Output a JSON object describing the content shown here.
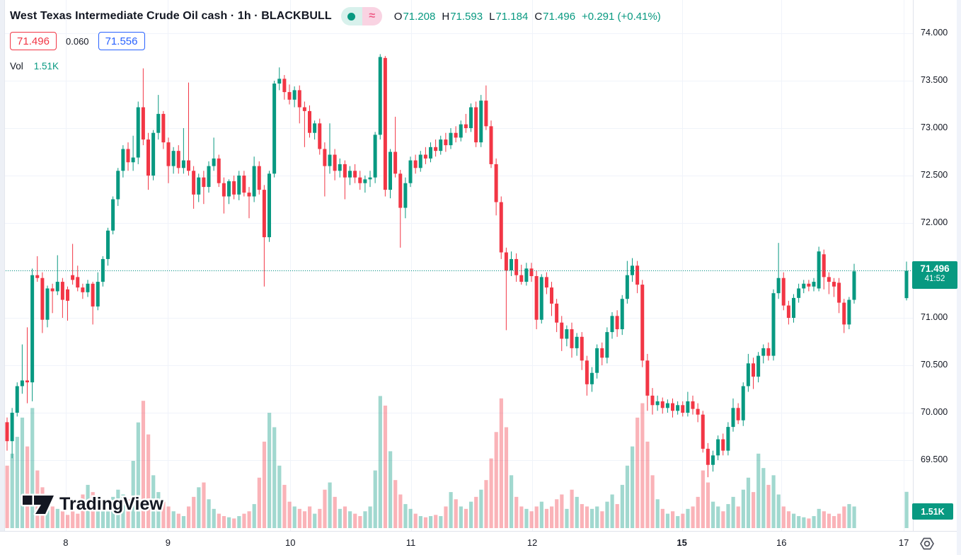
{
  "header": {
    "title": "West Texas Intermediate Crude Oil cash · 1h · BLACKBULL",
    "approx_glyph": "≈",
    "ohlc": {
      "o_label": "O",
      "o": "71.208",
      "h_label": "H",
      "h": "71.593",
      "l_label": "L",
      "l": "71.184",
      "c_label": "C",
      "c": "71.496",
      "change": "+0.291 (+0.41%)"
    },
    "bid": "71.496",
    "spread": "0.060",
    "ask": "71.556",
    "vol_label": "Vol",
    "vol_value": "1.51K"
  },
  "badges": {
    "price": "71.496",
    "countdown": "41:52",
    "volume": "1.51K"
  },
  "watermark": {
    "text": "TradingView"
  },
  "chart_data": {
    "type": "candlestick",
    "title": "West Texas Intermediate Crude Oil cash",
    "interval": "1h",
    "feed": "BLACKBULL",
    "legend": [
      "price OHLC candles",
      "volume bars"
    ],
    "grid": true,
    "ylim": [
      69.25,
      74.35
    ],
    "price_ticks": [
      {
        "label": "74.000",
        "price": 74.0
      },
      {
        "label": "73.500",
        "price": 73.5
      },
      {
        "label": "73.000",
        "price": 73.0
      },
      {
        "label": "72.500",
        "price": 72.5
      },
      {
        "label": "72.000",
        "price": 72.0
      },
      {
        "label": "71.000",
        "price": 71.0
      },
      {
        "label": "70.500",
        "price": 70.5
      },
      {
        "label": "70.000",
        "price": 70.0
      },
      {
        "label": "69.500",
        "price": 69.5
      }
    ],
    "grid_prices": [
      74.0,
      73.5,
      73.0,
      72.5,
      72.0,
      71.5,
      71.0,
      70.5,
      70.0,
      69.5
    ],
    "time_labels": [
      {
        "text": "8",
        "f": 0.072
      },
      {
        "text": "9",
        "f": 0.184
      },
      {
        "text": "10",
        "f": 0.318
      },
      {
        "text": "11",
        "f": 0.45
      },
      {
        "text": "12",
        "f": 0.583
      },
      {
        "text": "15",
        "f": 0.747,
        "bold": true
      },
      {
        "text": "16",
        "f": 0.856
      },
      {
        "text": "17",
        "f": 0.99
      }
    ],
    "last_price": 71.496,
    "countdown": "41:52",
    "volume_scale_max": 5.6,
    "current_candle": {
      "o": 71.208,
      "h": 71.593,
      "l": 71.184,
      "c": 71.496,
      "v": 1.51,
      "v_label": "1.51K"
    },
    "candles": [
      [
        69.9,
        69.95,
        69.6,
        69.7,
        2.6
      ],
      [
        69.7,
        70.05,
        69.52,
        70.0,
        3.1
      ],
      [
        70.0,
        70.32,
        69.96,
        70.28,
        3.8
      ],
      [
        70.28,
        70.72,
        70.2,
        70.34,
        4.6
      ],
      [
        70.34,
        70.9,
        70.1,
        70.32,
        3.4
      ],
      [
        70.32,
        71.52,
        70.12,
        71.45,
        5.0
      ],
      [
        71.45,
        71.65,
        71.38,
        71.42,
        2.4
      ],
      [
        71.42,
        71.48,
        70.84,
        70.98,
        1.7
      ],
      [
        70.98,
        71.34,
        70.9,
        71.31,
        1.2
      ],
      [
        71.31,
        71.36,
        71.05,
        71.28,
        0.9
      ],
      [
        71.28,
        71.66,
        71.24,
        71.38,
        0.8
      ],
      [
        71.38,
        71.42,
        71.0,
        71.19,
        0.7
      ],
      [
        71.3,
        71.33,
        70.97,
        71.18,
        0.55
      ],
      [
        71.45,
        71.78,
        71.35,
        71.4,
        0.8
      ],
      [
        71.43,
        71.55,
        71.28,
        71.32,
        0.6
      ],
      [
        71.32,
        71.36,
        71.2,
        71.27,
        1.4
      ],
      [
        71.27,
        71.4,
        71.22,
        71.36,
        1.8
      ],
      [
        71.36,
        71.38,
        70.93,
        71.12,
        1.5
      ],
      [
        71.12,
        71.48,
        71.08,
        71.38,
        1.1
      ],
      [
        71.38,
        71.65,
        71.33,
        71.62,
        0.9
      ],
      [
        71.62,
        71.95,
        71.55,
        71.92,
        1.0
      ],
      [
        71.92,
        72.28,
        71.88,
        72.25,
        1.3
      ],
      [
        72.25,
        72.58,
        72.18,
        72.55,
        1.6
      ],
      [
        72.55,
        72.82,
        72.48,
        72.78,
        1.4
      ],
      [
        72.78,
        72.85,
        72.55,
        72.64,
        1.2
      ],
      [
        72.64,
        72.92,
        72.55,
        72.69,
        2.8
      ],
      [
        72.69,
        73.28,
        72.62,
        73.22,
        4.4
      ],
      [
        73.22,
        73.63,
        72.82,
        72.88,
        5.3
      ],
      [
        72.88,
        72.95,
        72.35,
        72.5,
        3.9
      ],
      [
        72.5,
        72.98,
        72.45,
        72.95,
        2.2
      ],
      [
        72.95,
        73.35,
        72.88,
        73.15,
        1.5
      ],
      [
        73.15,
        73.18,
        72.78,
        72.85,
        1.1
      ],
      [
        72.85,
        72.9,
        72.42,
        72.6,
        0.9
      ],
      [
        72.6,
        72.8,
        72.52,
        72.76,
        0.7
      ],
      [
        72.76,
        72.82,
        72.52,
        72.58,
        0.6
      ],
      [
        72.58,
        73.0,
        72.52,
        72.66,
        0.5
      ],
      [
        72.66,
        73.48,
        72.5,
        72.55,
        0.9
      ],
      [
        72.55,
        72.6,
        72.15,
        72.3,
        1.3
      ],
      [
        72.3,
        72.52,
        72.22,
        72.48,
        1.7
      ],
      [
        72.48,
        72.55,
        72.2,
        72.38,
        1.9
      ],
      [
        72.38,
        72.65,
        72.32,
        72.6,
        1.2
      ],
      [
        72.6,
        72.9,
        72.55,
        72.68,
        0.8
      ],
      [
        72.68,
        72.72,
        72.38,
        72.42,
        0.6
      ],
      [
        72.42,
        72.48,
        72.1,
        72.28,
        0.5
      ],
      [
        72.28,
        72.46,
        72.2,
        72.44,
        0.45
      ],
      [
        72.44,
        72.5,
        72.25,
        72.3,
        0.4
      ],
      [
        72.3,
        72.55,
        72.24,
        72.5,
        0.5
      ],
      [
        72.5,
        72.55,
        72.28,
        72.32,
        0.6
      ],
      [
        72.32,
        72.38,
        72.05,
        72.28,
        0.7
      ],
      [
        72.28,
        72.7,
        72.22,
        72.6,
        1.0
      ],
      [
        72.6,
        72.65,
        72.3,
        72.35,
        2.1
      ],
      [
        72.35,
        72.4,
        71.33,
        71.85,
        3.6
      ],
      [
        71.85,
        72.55,
        71.8,
        72.52,
        4.8
      ],
      [
        72.52,
        73.5,
        72.48,
        73.47,
        4.2
      ],
      [
        73.47,
        73.64,
        73.4,
        73.52,
        2.6
      ],
      [
        73.52,
        73.56,
        73.3,
        73.38,
        1.8
      ],
      [
        73.38,
        73.46,
        73.25,
        73.3,
        1.1
      ],
      [
        73.3,
        73.44,
        73.22,
        73.4,
        0.9
      ],
      [
        73.4,
        73.45,
        73.05,
        73.22,
        0.8
      ],
      [
        73.22,
        73.28,
        72.8,
        73.18,
        0.7
      ],
      [
        73.18,
        73.24,
        72.9,
        72.95,
        0.9
      ],
      [
        72.95,
        73.08,
        72.88,
        73.05,
        0.6
      ],
      [
        73.05,
        73.1,
        72.72,
        72.78,
        0.8
      ],
      [
        72.78,
        72.85,
        72.28,
        72.6,
        1.6
      ],
      [
        72.6,
        73.05,
        72.52,
        72.72,
        1.9
      ],
      [
        72.72,
        72.78,
        72.45,
        72.55,
        1.3
      ],
      [
        72.55,
        72.68,
        72.48,
        72.62,
        0.8
      ],
      [
        72.62,
        72.66,
        72.25,
        72.48,
        0.9
      ],
      [
        72.48,
        72.6,
        72.4,
        72.55,
        0.7
      ],
      [
        72.55,
        72.62,
        72.42,
        72.48,
        0.6
      ],
      [
        72.48,
        72.55,
        72.35,
        72.42,
        0.5
      ],
      [
        72.42,
        72.5,
        72.32,
        72.46,
        0.7
      ],
      [
        72.46,
        72.55,
        72.38,
        72.48,
        0.9
      ],
      [
        72.48,
        72.96,
        72.42,
        72.93,
        2.4
      ],
      [
        72.93,
        73.78,
        72.88,
        73.75,
        5.5
      ],
      [
        73.74,
        73.76,
        72.28,
        72.35,
        5.1
      ],
      [
        72.35,
        72.78,
        72.26,
        72.75,
        3.2
      ],
      [
        72.75,
        73.12,
        72.48,
        72.52,
        2.0
      ],
      [
        72.52,
        72.56,
        71.74,
        72.16,
        1.4
      ],
      [
        72.16,
        72.48,
        72.05,
        72.42,
        1.0
      ],
      [
        72.42,
        72.7,
        72.38,
        72.66,
        0.8
      ],
      [
        72.66,
        72.72,
        72.52,
        72.58,
        0.6
      ],
      [
        72.58,
        72.76,
        72.54,
        72.72,
        0.5
      ],
      [
        72.72,
        72.8,
        72.62,
        72.68,
        0.45
      ],
      [
        72.68,
        72.85,
        72.64,
        72.8,
        0.5
      ],
      [
        72.8,
        72.88,
        72.7,
        72.76,
        0.55
      ],
      [
        72.76,
        72.92,
        72.72,
        72.88,
        0.5
      ],
      [
        72.88,
        72.95,
        72.75,
        72.82,
        0.9
      ],
      [
        72.82,
        73.0,
        72.78,
        72.95,
        1.5
      ],
      [
        72.95,
        73.02,
        72.85,
        72.9,
        1.2
      ],
      [
        72.9,
        73.08,
        72.86,
        73.04,
        0.9
      ],
      [
        73.04,
        73.15,
        72.95,
        73.0,
        0.8
      ],
      [
        73.0,
        73.26,
        72.96,
        73.22,
        1.1
      ],
      [
        73.22,
        73.28,
        72.8,
        72.85,
        1.3
      ],
      [
        72.85,
        73.35,
        72.8,
        73.29,
        1.6
      ],
      [
        73.29,
        73.45,
        72.98,
        73.02,
        2.0
      ],
      [
        73.02,
        73.08,
        72.58,
        72.62,
        2.9
      ],
      [
        72.62,
        72.68,
        72.08,
        72.22,
        4.0
      ],
      [
        72.22,
        72.28,
        71.62,
        71.69,
        5.4
      ],
      [
        71.69,
        71.74,
        70.87,
        71.5,
        4.2
      ],
      [
        71.5,
        71.7,
        71.44,
        71.62,
        2.2
      ],
      [
        71.62,
        71.68,
        71.38,
        71.45,
        1.3
      ],
      [
        71.45,
        71.56,
        71.35,
        71.38,
        0.9
      ],
      [
        71.38,
        71.58,
        71.34,
        71.52,
        0.8
      ],
      [
        71.52,
        71.58,
        71.38,
        71.44,
        0.7
      ],
      [
        71.44,
        71.5,
        70.88,
        70.98,
        0.9
      ],
      [
        70.98,
        71.46,
        70.94,
        71.43,
        1.1
      ],
      [
        71.43,
        71.48,
        71.25,
        71.32,
        0.8
      ],
      [
        71.32,
        71.38,
        71.02,
        71.15,
        0.9
      ],
      [
        71.15,
        71.2,
        70.85,
        70.95,
        1.2
      ],
      [
        70.95,
        71.02,
        70.65,
        70.78,
        1.4
      ],
      [
        70.78,
        70.92,
        70.7,
        70.88,
        0.8
      ],
      [
        70.88,
        70.95,
        70.58,
        70.68,
        1.6
      ],
      [
        70.68,
        70.84,
        70.6,
        70.8,
        1.3
      ],
      [
        70.8,
        70.85,
        70.45,
        70.55,
        1.0
      ],
      [
        70.55,
        70.6,
        70.18,
        70.3,
        0.9
      ],
      [
        70.3,
        70.48,
        70.22,
        70.42,
        0.8
      ],
      [
        70.42,
        70.72,
        70.36,
        70.68,
        0.9
      ],
      [
        70.68,
        70.74,
        70.5,
        70.58,
        0.7
      ],
      [
        70.58,
        70.9,
        70.52,
        70.85,
        1.1
      ],
      [
        70.85,
        71.06,
        70.78,
        71.02,
        1.4
      ],
      [
        71.02,
        71.08,
        70.8,
        70.88,
        1.0
      ],
      [
        70.88,
        71.24,
        70.82,
        71.2,
        1.8
      ],
      [
        71.2,
        71.6,
        71.15,
        71.45,
        2.6
      ],
      [
        71.45,
        71.63,
        71.38,
        71.55,
        3.4
      ],
      [
        71.55,
        71.6,
        71.26,
        71.35,
        4.6
      ],
      [
        71.35,
        71.4,
        70.48,
        70.55,
        5.2
      ],
      [
        70.55,
        70.62,
        70.02,
        70.18,
        3.6
      ],
      [
        70.18,
        70.26,
        69.98,
        70.08,
        2.2
      ],
      [
        70.08,
        70.18,
        70.02,
        70.12,
        1.2
      ],
      [
        70.12,
        70.16,
        69.99,
        70.05,
        0.8
      ],
      [
        70.05,
        70.14,
        70.0,
        70.1,
        0.6
      ],
      [
        70.1,
        70.15,
        69.95,
        70.02,
        0.7
      ],
      [
        70.02,
        70.12,
        69.98,
        70.08,
        0.5
      ],
      [
        70.08,
        70.12,
        69.96,
        70.0,
        0.6
      ],
      [
        70.0,
        70.22,
        69.96,
        70.12,
        0.8
      ],
      [
        70.12,
        70.18,
        69.98,
        70.04,
        0.9
      ],
      [
        70.04,
        70.1,
        69.9,
        69.98,
        1.3
      ],
      [
        69.98,
        70.02,
        69.58,
        69.62,
        2.4
      ],
      [
        69.62,
        69.68,
        69.32,
        69.45,
        1.9
      ],
      [
        69.45,
        69.6,
        69.38,
        69.55,
        1.1
      ],
      [
        69.55,
        69.76,
        69.5,
        69.72,
        0.9
      ],
      [
        69.72,
        69.78,
        69.55,
        69.6,
        0.7
      ],
      [
        69.6,
        69.9,
        69.55,
        69.85,
        1.0
      ],
      [
        69.85,
        70.15,
        69.8,
        70.05,
        1.3
      ],
      [
        70.05,
        70.1,
        69.88,
        69.92,
        0.9
      ],
      [
        69.92,
        70.32,
        69.86,
        70.28,
        1.6
      ],
      [
        70.28,
        70.62,
        70.22,
        70.52,
        2.1
      ],
      [
        70.52,
        70.58,
        70.25,
        70.38,
        1.5
      ],
      [
        70.38,
        70.64,
        70.32,
        70.6,
        3.1
      ],
      [
        70.6,
        70.72,
        70.52,
        70.68,
        2.5
      ],
      [
        70.68,
        70.74,
        70.55,
        70.6,
        1.8
      ],
      [
        70.6,
        71.3,
        70.55,
        71.26,
        2.2
      ],
      [
        71.26,
        71.79,
        71.2,
        71.42,
        1.4
      ],
      [
        71.42,
        71.48,
        71.08,
        71.13,
        0.9
      ],
      [
        71.13,
        71.18,
        70.93,
        71.0,
        0.7
      ],
      [
        71.0,
        71.25,
        70.95,
        71.21,
        0.6
      ],
      [
        71.21,
        71.36,
        71.16,
        71.31,
        0.5
      ],
      [
        71.31,
        71.4,
        71.26,
        71.36,
        0.45
      ],
      [
        71.36,
        71.4,
        71.28,
        71.33,
        0.4
      ],
      [
        71.33,
        71.42,
        71.28,
        71.38,
        0.5
      ],
      [
        71.31,
        71.75,
        71.28,
        71.7,
        0.8
      ],
      [
        71.67,
        71.72,
        71.3,
        71.43,
        0.7
      ],
      [
        71.43,
        71.48,
        71.25,
        71.38,
        0.6
      ],
      [
        71.38,
        71.42,
        71.22,
        71.33,
        0.5
      ],
      [
        71.37,
        71.42,
        71.05,
        71.16,
        0.6
      ],
      [
        71.16,
        71.2,
        70.84,
        70.93,
        0.9
      ],
      [
        70.93,
        71.22,
        70.88,
        71.19,
        1.0
      ],
      [
        71.19,
        71.57,
        71.15,
        71.49,
        0.9
      ]
    ],
    "colors": {
      "up": "#089981",
      "down": "#F23645",
      "vol_up": "rgba(8,153,129,0.38)",
      "vol_down": "rgba(242,54,69,0.38)",
      "grid": "#f0f3fa",
      "axis_text": "#131722",
      "dotted_line": "#089981",
      "badge_bg": "#089981",
      "bid": "#F23645",
      "ask": "#2962FF"
    }
  }
}
